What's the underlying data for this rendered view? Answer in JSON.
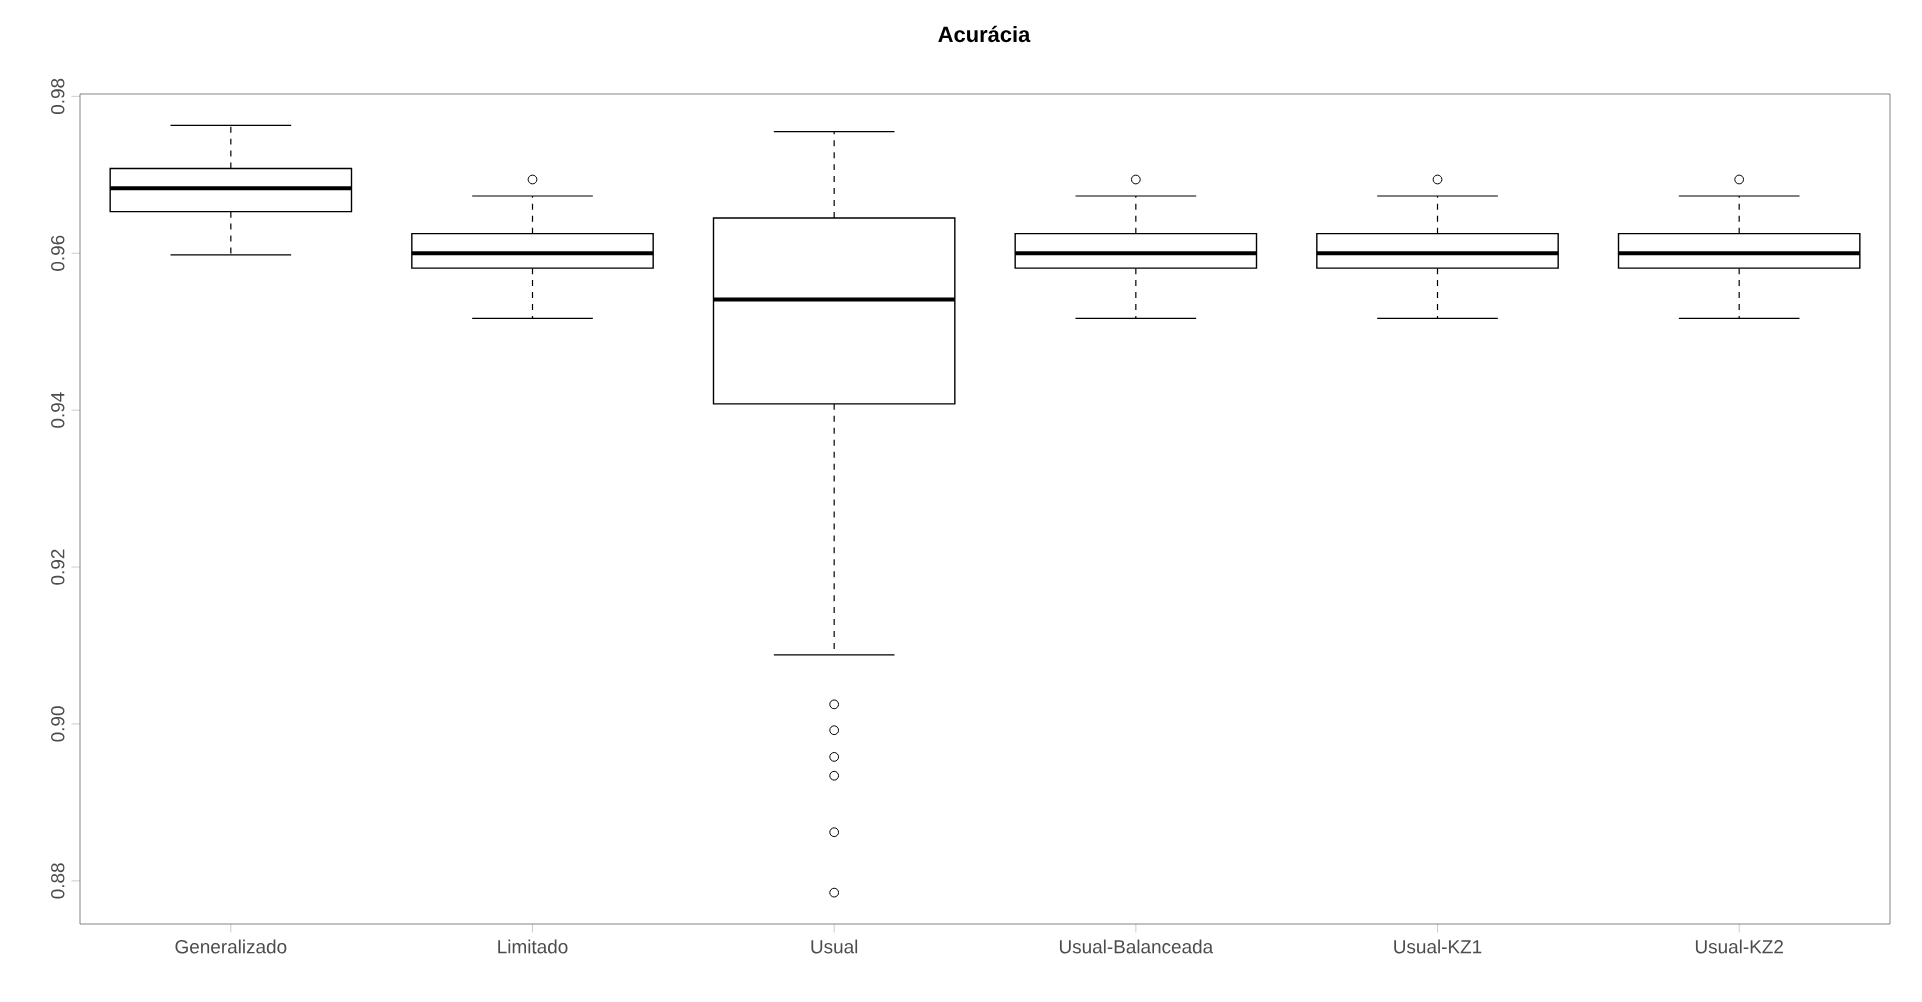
{
  "chart_data": {
    "type": "box",
    "title": "Acurácia",
    "categories": [
      "Generalizado",
      "Limitado",
      "Usual",
      "Usual-Balanceada",
      "Usual-KZ1",
      "Usual-KZ2"
    ],
    "boxes": [
      {
        "low": 0.9598,
        "q1": 0.9653,
        "median": 0.9683,
        "q3": 0.9708,
        "high": 0.9763
      },
      {
        "low": 0.9517,
        "q1": 0.9581,
        "median": 0.96,
        "q3": 0.9625,
        "high": 0.9673,
        "outliers": [
          0.9694
        ]
      },
      {
        "low": 0.9088,
        "q1": 0.9408,
        "median": 0.9541,
        "q3": 0.9645,
        "high": 0.9755,
        "outliers": [
          0.9025,
          0.8992,
          0.8958,
          0.8934,
          0.8862,
          0.8785
        ]
      },
      {
        "low": 0.9517,
        "q1": 0.9581,
        "median": 0.96,
        "q3": 0.9625,
        "high": 0.9673,
        "outliers": [
          0.9694
        ]
      },
      {
        "low": 0.9517,
        "q1": 0.9581,
        "median": 0.96,
        "q3": 0.9625,
        "high": 0.9673,
        "outliers": [
          0.9694
        ]
      },
      {
        "low": 0.9517,
        "q1": 0.9581,
        "median": 0.96,
        "q3": 0.9625,
        "high": 0.9673,
        "outliers": [
          0.9694
        ]
      }
    ],
    "ylim": [
      0.8745,
      0.9803
    ],
    "yticks": [
      0.88,
      {
        "value": 0.9,
        "label": "0.90"
      },
      0.92,
      0.94,
      0.96,
      0.98
    ]
  }
}
